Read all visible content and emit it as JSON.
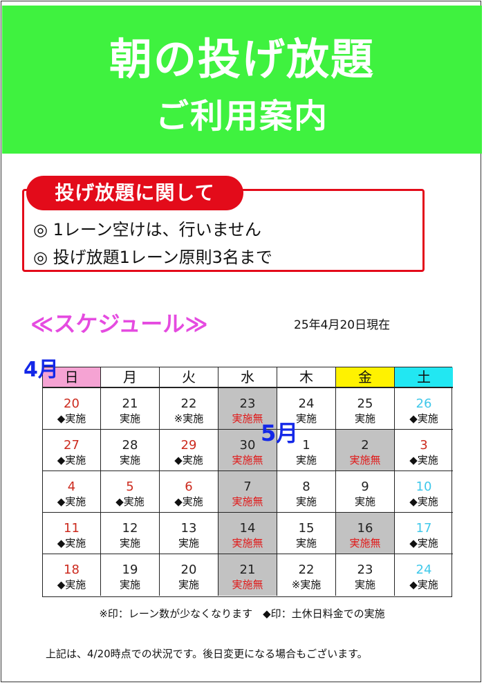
{
  "header": {
    "title": "朝の投げ放題",
    "subtitle": "ご利用案内",
    "bg_color": "#3ff23f"
  },
  "rules": {
    "heading": "投げ放題に関して",
    "items": [
      "◎ 1レーン空けは、行いません",
      "◎ 投げ放題1レーン原則3名まで"
    ],
    "accent_color": "#e30b1a"
  },
  "schedule": {
    "title": "≪スケジュール≫",
    "as_of": "25年4月20日現在",
    "month_april": "4月",
    "month_may": "5月",
    "weekdays": [
      "日",
      "月",
      "火",
      "水",
      "木",
      "金",
      "土"
    ],
    "weeks": [
      [
        {
          "day": "20",
          "status": "◆実施",
          "kind": "holiday"
        },
        {
          "day": "21",
          "status": "実施",
          "kind": "normal"
        },
        {
          "day": "22",
          "status": "※実施",
          "kind": "normal"
        },
        {
          "day": "23",
          "status": "実施無",
          "kind": "none"
        },
        {
          "day": "24",
          "status": "実施",
          "kind": "normal"
        },
        {
          "day": "25",
          "status": "実施",
          "kind": "normal"
        },
        {
          "day": "26",
          "status": "◆実施",
          "kind": "sat"
        }
      ],
      [
        {
          "day": "27",
          "status": "◆実施",
          "kind": "holiday"
        },
        {
          "day": "28",
          "status": "実施",
          "kind": "normal"
        },
        {
          "day": "29",
          "status": "◆実施",
          "kind": "holiday"
        },
        {
          "day": "30",
          "status": "実施無",
          "kind": "none"
        },
        {
          "day": "1",
          "status": "実施",
          "kind": "normal"
        },
        {
          "day": "2",
          "status": "実施無",
          "kind": "none"
        },
        {
          "day": "3",
          "status": "◆実施",
          "kind": "holiday"
        }
      ],
      [
        {
          "day": "4",
          "status": "◆実施",
          "kind": "holiday"
        },
        {
          "day": "5",
          "status": "◆実施",
          "kind": "holiday"
        },
        {
          "day": "6",
          "status": "◆実施",
          "kind": "holiday"
        },
        {
          "day": "7",
          "status": "実施無",
          "kind": "none"
        },
        {
          "day": "8",
          "status": "実施",
          "kind": "normal"
        },
        {
          "day": "9",
          "status": "実施",
          "kind": "normal"
        },
        {
          "day": "10",
          "status": "◆実施",
          "kind": "sat"
        }
      ],
      [
        {
          "day": "11",
          "status": "◆実施",
          "kind": "holiday"
        },
        {
          "day": "12",
          "status": "実施",
          "kind": "normal"
        },
        {
          "day": "13",
          "status": "実施",
          "kind": "normal"
        },
        {
          "day": "14",
          "status": "実施無",
          "kind": "none"
        },
        {
          "day": "15",
          "status": "実施",
          "kind": "normal"
        },
        {
          "day": "16",
          "status": "実施無",
          "kind": "none"
        },
        {
          "day": "17",
          "status": "◆実施",
          "kind": "sat"
        }
      ],
      [
        {
          "day": "18",
          "status": "◆実施",
          "kind": "holiday"
        },
        {
          "day": "19",
          "status": "実施",
          "kind": "normal"
        },
        {
          "day": "20",
          "status": "実施",
          "kind": "normal"
        },
        {
          "day": "21",
          "status": "実施無",
          "kind": "none"
        },
        {
          "day": "22",
          "status": "※実施",
          "kind": "normal"
        },
        {
          "day": "23",
          "status": "実施",
          "kind": "normal"
        },
        {
          "day": "24",
          "status": "◆実施",
          "kind": "sat"
        }
      ]
    ],
    "header_colors": {
      "sun": "#f5a3d3",
      "fri": "#fff200",
      "sat": "#22e7f2"
    },
    "legend": "※印：レーン数が少なくなります　◆印：土休日料金での実施",
    "note": "上記は、4/20時点での状況です。後日変更になる場合もございます。"
  }
}
